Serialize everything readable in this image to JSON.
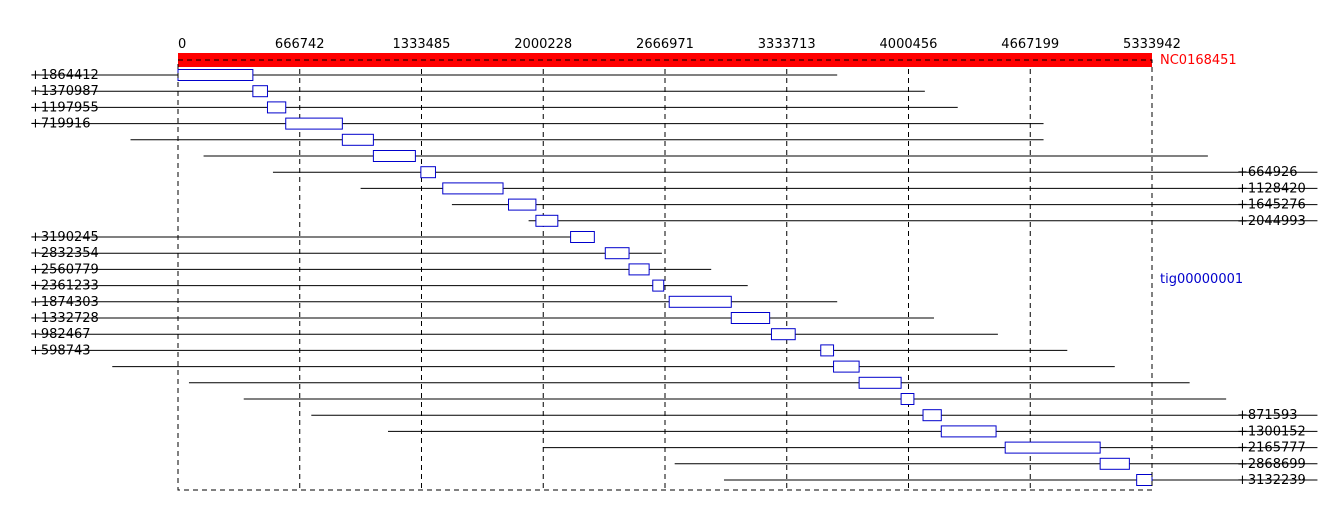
{
  "chart_data": {
    "type": "alignment-dotplot",
    "reference": {
      "name": "NC0168451",
      "length": 5333942,
      "color": "#ff0000"
    },
    "contig": {
      "name": "tig00000001",
      "color": "#0000cc"
    },
    "x_ticks": [
      0,
      666742,
      1333485,
      2000228,
      2666971,
      3333713,
      4000456,
      4667199,
      5333942
    ],
    "x_tick_labels": [
      "0",
      "666742",
      "1333485",
      "2000228",
      "2666971",
      "3333713",
      "4000456",
      "4667199",
      "5333942"
    ],
    "alignments": [
      {
        "start": 0,
        "end": 410000,
        "line_start": -760000,
        "line_end": 3610000,
        "label": "+1864412",
        "label_side": "left"
      },
      {
        "start": 410000,
        "end": 490000,
        "line_start": -760000,
        "line_end": 4090000,
        "label": "+1370987",
        "label_side": "left"
      },
      {
        "start": 490000,
        "end": 590000,
        "line_start": -760000,
        "line_end": 4270000,
        "label": "+1197955",
        "label_side": "left"
      },
      {
        "start": 590000,
        "end": 900000,
        "line_start": -760000,
        "line_end": 4740000,
        "label": "+719916",
        "label_side": "left"
      },
      {
        "start": 900000,
        "end": 1070000,
        "line_start": -260000,
        "line_end": 4740000,
        "label": "",
        "label_side": ""
      },
      {
        "start": 1070000,
        "end": 1300000,
        "line_start": 140000,
        "line_end": 5640000,
        "label": "",
        "label_side": ""
      },
      {
        "start": 1330000,
        "end": 1410000,
        "line_start": 520000,
        "line_end": 6240000,
        "label": "+664926",
        "label_side": "right"
      },
      {
        "start": 1450000,
        "end": 1780000,
        "line_start": 1000000,
        "line_end": 6240000,
        "label": "+1128420",
        "label_side": "right"
      },
      {
        "start": 1810000,
        "end": 1960000,
        "line_start": 1500000,
        "line_end": 6240000,
        "label": "+1645276",
        "label_side": "right"
      },
      {
        "start": 1960000,
        "end": 2080000,
        "line_start": 1920000,
        "line_end": 6240000,
        "label": "+2044993",
        "label_side": "right"
      },
      {
        "start": 2150000,
        "end": 2280000,
        "line_start": -760000,
        "line_end": 2280000,
        "label": "+3190245",
        "label_side": "left"
      },
      {
        "start": 2340000,
        "end": 2470000,
        "line_start": -760000,
        "line_end": 2650000,
        "label": "+2832354",
        "label_side": "left"
      },
      {
        "start": 2470000,
        "end": 2580000,
        "line_start": -760000,
        "line_end": 2920000,
        "label": "+2560779",
        "label_side": "left"
      },
      {
        "start": 2600000,
        "end": 2660000,
        "line_start": -760000,
        "line_end": 3120000,
        "label": "+2361233",
        "label_side": "left"
      },
      {
        "start": 2690000,
        "end": 3030000,
        "line_start": -760000,
        "line_end": 3610000,
        "label": "+1874303",
        "label_side": "left"
      },
      {
        "start": 3030000,
        "end": 3240000,
        "line_start": -760000,
        "line_end": 4140000,
        "label": "+1332728",
        "label_side": "left"
      },
      {
        "start": 3250000,
        "end": 3380000,
        "line_start": -760000,
        "line_end": 4490000,
        "label": "+982467",
        "label_side": "left"
      },
      {
        "start": 3520000,
        "end": 3590000,
        "line_start": -760000,
        "line_end": 4870000,
        "label": "+598743",
        "label_side": "left"
      },
      {
        "start": 3590000,
        "end": 3730000,
        "line_start": -360000,
        "line_end": 5130000,
        "label": "",
        "label_side": ""
      },
      {
        "start": 3730000,
        "end": 3960000,
        "line_start": 60000,
        "line_end": 5540000,
        "label": "",
        "label_side": ""
      },
      {
        "start": 3960000,
        "end": 4030000,
        "line_start": 360000,
        "line_end": 5740000,
        "label": "",
        "label_side": ""
      },
      {
        "start": 4080000,
        "end": 4180000,
        "line_start": 730000,
        "line_end": 6240000,
        "label": "+871593",
        "label_side": "right"
      },
      {
        "start": 4180000,
        "end": 4480000,
        "line_start": 1150000,
        "line_end": 6240000,
        "label": "+1300152",
        "label_side": "right"
      },
      {
        "start": 4530000,
        "end": 5050000,
        "line_start": 2000000,
        "line_end": 6240000,
        "label": "+2165777",
        "label_side": "right"
      },
      {
        "start": 5050000,
        "end": 5210000,
        "line_start": 2720000,
        "line_end": 6240000,
        "label": "+2868699",
        "label_side": "right"
      },
      {
        "start": 5250000,
        "end": 5333942,
        "line_start": 2990000,
        "line_end": 6240000,
        "label": "+3132239",
        "label_side": "right"
      }
    ]
  }
}
